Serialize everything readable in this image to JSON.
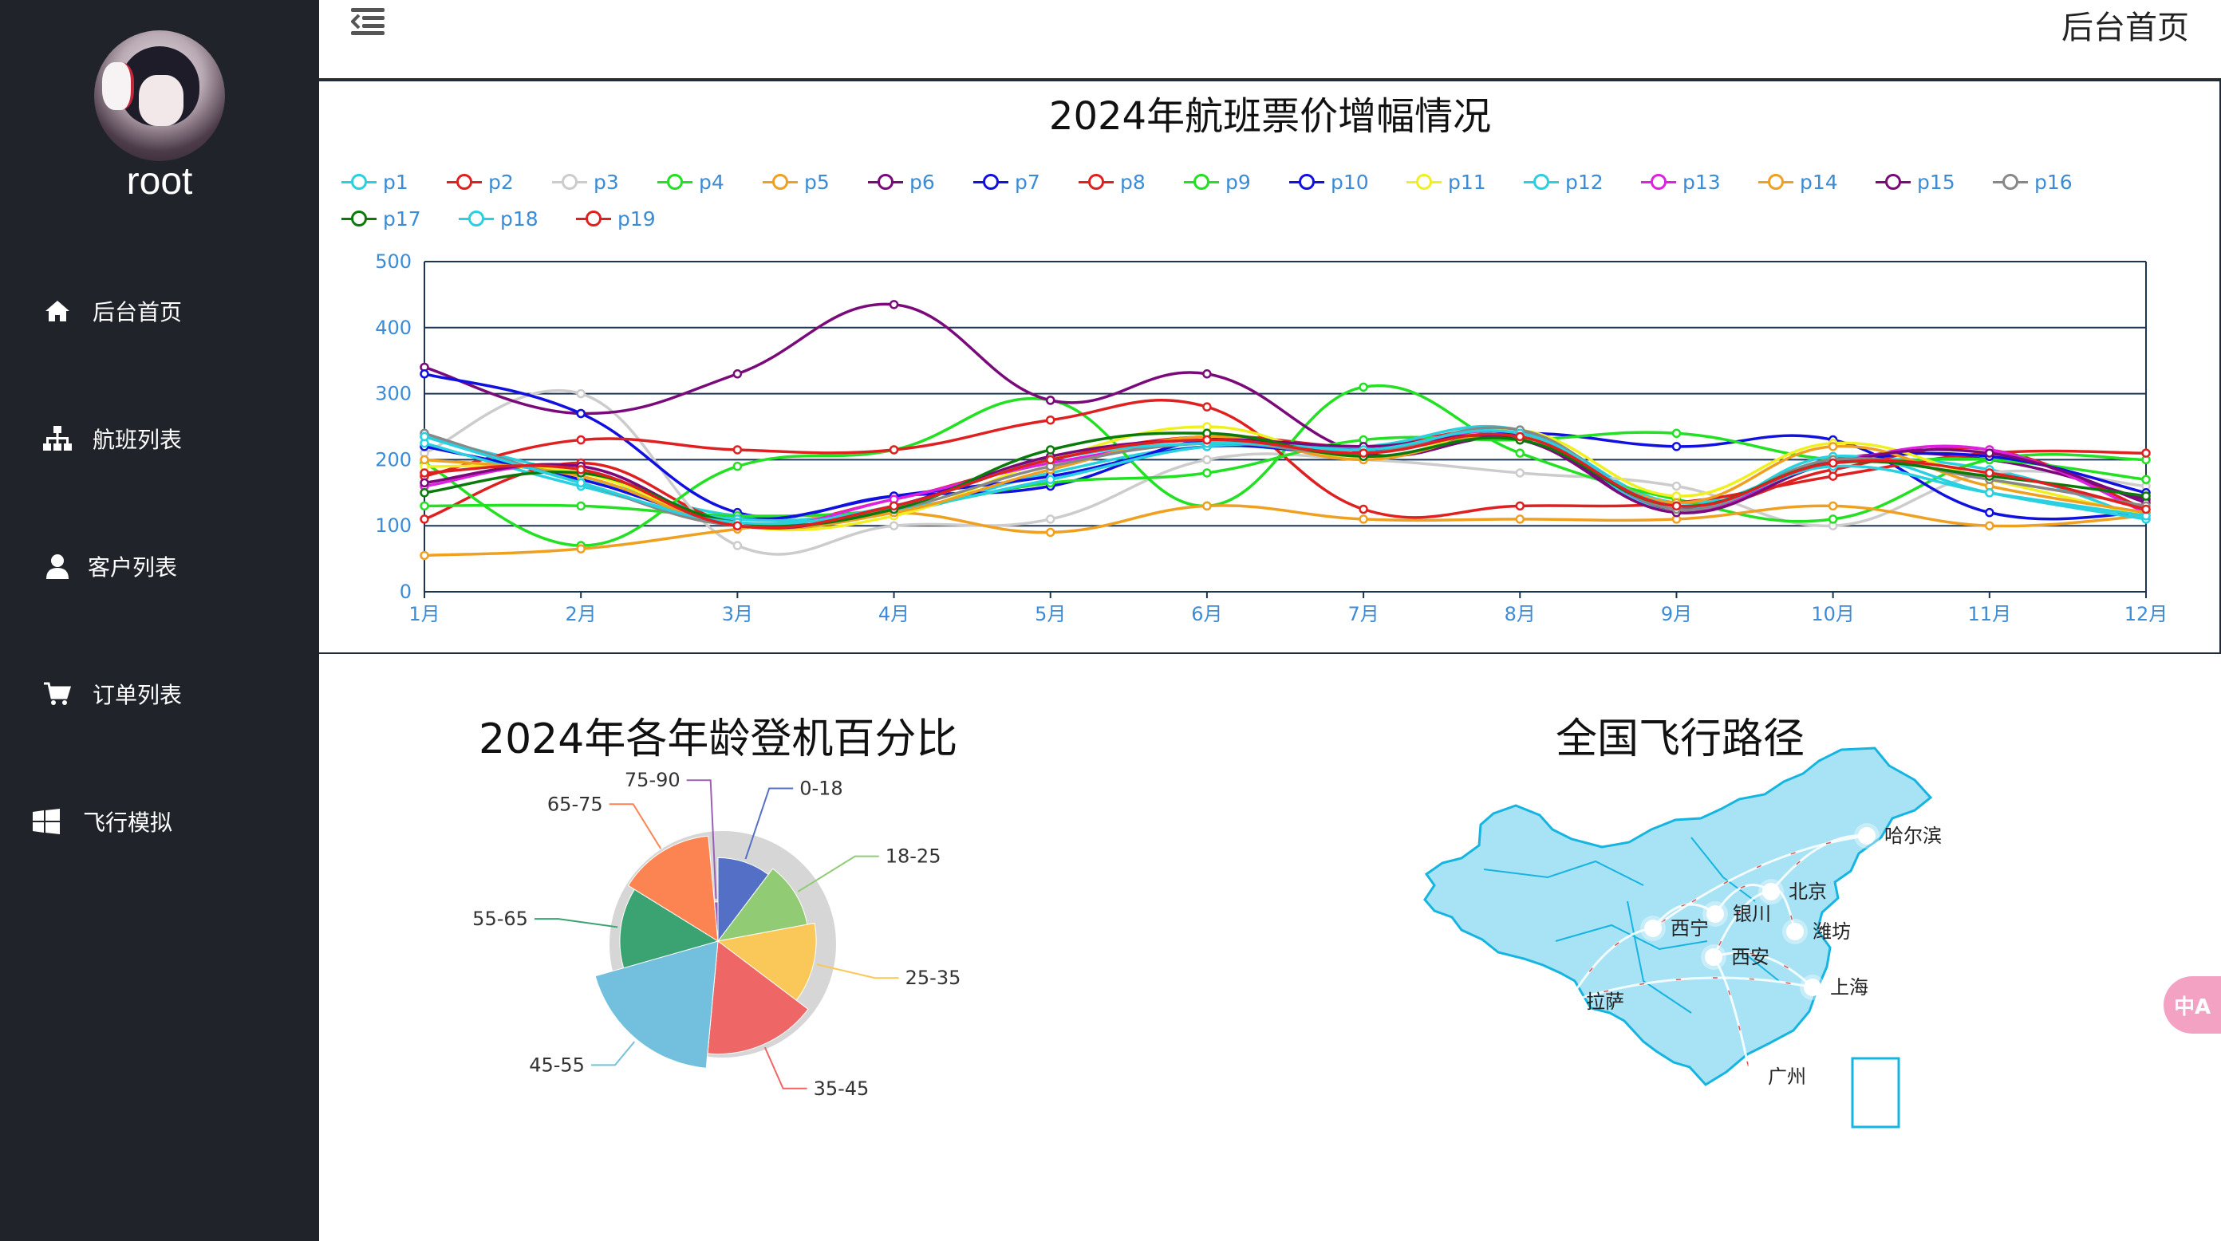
{
  "user": {
    "name": "root"
  },
  "menu": [
    {
      "label": "后台首页",
      "icon": "home-icon"
    },
    {
      "label": "航班列表",
      "icon": "sitemap-icon"
    },
    {
      "label": "客户列表",
      "icon": "user-icon"
    },
    {
      "label": "订单列表",
      "icon": "cart-icon"
    },
    {
      "label": "飞行模拟",
      "icon": "windows-icon"
    }
  ],
  "topbar": {
    "title": "后台首页"
  },
  "translate_label": "中A",
  "colors": {
    "sidebar_bg": "#20232a",
    "axis_text": "#3b8bd6",
    "map_fill": "#a8e3f5",
    "map_border": "#16b4e0"
  },
  "chart_data": [
    {
      "type": "line",
      "title": "2024年航班票价增幅情况",
      "x": [
        "1月",
        "2月",
        "3月",
        "4月",
        "5月",
        "6月",
        "7月",
        "8月",
        "9月",
        "10月",
        "11月",
        "12月"
      ],
      "ylim": [
        0,
        500
      ],
      "yticks": [
        0,
        100,
        200,
        300,
        400,
        500
      ],
      "grid": true,
      "legend_position": "top",
      "series": [
        {
          "name": "p1",
          "color": "#29d0e0",
          "values": [
            235,
            175,
            115,
            120,
            180,
            220,
            210,
            240,
            135,
            195,
            185,
            110
          ]
        },
        {
          "name": "p2",
          "color": "#e02020",
          "values": [
            110,
            195,
            105,
            140,
            200,
            235,
            220,
            240,
            130,
            185,
            215,
            125
          ]
        },
        {
          "name": "p3",
          "color": "#cccccc",
          "values": [
            210,
            300,
            70,
            100,
            110,
            200,
            200,
            180,
            160,
            100,
            180,
            160
          ]
        },
        {
          "name": "p4",
          "color": "#22e022",
          "values": [
            195,
            70,
            190,
            215,
            290,
            130,
            310,
            210,
            140,
            110,
            200,
            200
          ]
        },
        {
          "name": "p5",
          "color": "#f0a020",
          "values": [
            55,
            65,
            95,
            120,
            90,
            130,
            110,
            110,
            110,
            130,
            100,
            115
          ]
        },
        {
          "name": "p6",
          "color": "#7a0a7a",
          "values": [
            340,
            270,
            330,
            435,
            290,
            330,
            210,
            230,
            125,
            200,
            200,
            140
          ]
        },
        {
          "name": "p7",
          "color": "#1010e0",
          "values": [
            330,
            270,
            120,
            145,
            160,
            230,
            215,
            240,
            220,
            230,
            120,
            120
          ]
        },
        {
          "name": "p8",
          "color": "#e02020",
          "values": [
            175,
            230,
            215,
            215,
            260,
            280,
            125,
            130,
            135,
            175,
            210,
            210
          ]
        },
        {
          "name": "p9",
          "color": "#22e022",
          "values": [
            130,
            130,
            115,
            125,
            165,
            180,
            230,
            230,
            240,
            200,
            200,
            170
          ]
        },
        {
          "name": "p10",
          "color": "#1010e0",
          "values": [
            220,
            170,
            110,
            145,
            175,
            220,
            210,
            240,
            130,
            195,
            205,
            150
          ]
        },
        {
          "name": "p11",
          "color": "#f0f020",
          "values": [
            190,
            180,
            100,
            115,
            200,
            250,
            200,
            245,
            145,
            225,
            170,
            115
          ]
        },
        {
          "name": "p12",
          "color": "#29d0e0",
          "values": [
            225,
            160,
            110,
            125,
            170,
            220,
            220,
            245,
            120,
            205,
            150,
            110
          ]
        },
        {
          "name": "p13",
          "color": "#e020e0",
          "values": [
            160,
            190,
            100,
            140,
            195,
            225,
            210,
            240,
            125,
            195,
            215,
            120
          ]
        },
        {
          "name": "p14",
          "color": "#f0a020",
          "values": [
            200,
            175,
            100,
            120,
            185,
            235,
            200,
            235,
            135,
            220,
            160,
            120
          ]
        },
        {
          "name": "p15",
          "color": "#7a0a7a",
          "values": [
            165,
            190,
            100,
            130,
            205,
            230,
            220,
            230,
            120,
            195,
            210,
            135
          ]
        },
        {
          "name": "p16",
          "color": "#888888",
          "values": [
            240,
            165,
            100,
            125,
            190,
            225,
            210,
            245,
            125,
            200,
            170,
            130
          ]
        },
        {
          "name": "p17",
          "color": "#0a7a0a",
          "values": [
            150,
            180,
            105,
            125,
            215,
            240,
            205,
            230,
            130,
            195,
            175,
            145
          ]
        },
        {
          "name": "p18",
          "color": "#29d0e0",
          "values": [
            235,
            165,
            105,
            130,
            200,
            225,
            215,
            240,
            130,
            190,
            150,
            115
          ]
        },
        {
          "name": "p19",
          "color": "#e02020",
          "values": [
            180,
            185,
            100,
            130,
            200,
            230,
            210,
            235,
            130,
            195,
            180,
            125
          ]
        }
      ]
    },
    {
      "type": "pie",
      "title": "2024年各年龄登机百分比",
      "rose_type": "radius",
      "slices": [
        {
          "label": "0-18",
          "value": 7,
          "color": "#5470c6"
        },
        {
          "label": "18-25",
          "value": 8,
          "color": "#91cc75"
        },
        {
          "label": "25-35",
          "value": 9,
          "color": "#fac858"
        },
        {
          "label": "35-45",
          "value": 11,
          "color": "#ee6666"
        },
        {
          "label": "45-55",
          "value": 13,
          "color": "#73c0de"
        },
        {
          "label": "55-65",
          "value": 9,
          "color": "#3ba272"
        },
        {
          "label": "65-75",
          "value": 10,
          "color": "#fc8452"
        },
        {
          "label": "75-90",
          "value": 1,
          "color": "#9a60b4"
        }
      ]
    }
  ],
  "map": {
    "title": "全国飞行路径",
    "cities": [
      {
        "name": "哈尔滨"
      },
      {
        "name": "北京"
      },
      {
        "name": "银川"
      },
      {
        "name": "西宁"
      },
      {
        "name": "潍坊"
      },
      {
        "name": "西安"
      },
      {
        "name": "上海"
      },
      {
        "name": "拉萨"
      },
      {
        "name": "广州"
      }
    ]
  }
}
